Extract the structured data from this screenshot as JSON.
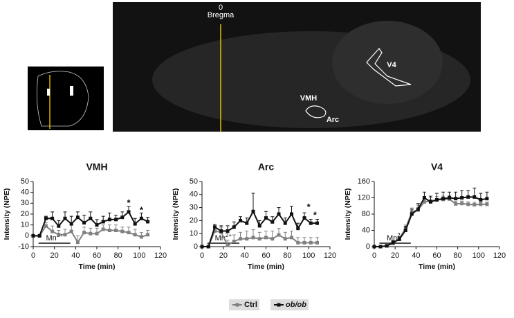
{
  "image_labels": {
    "bregma_position": "0",
    "bregma": "Bregma",
    "regions": [
      "VMH",
      "Arc",
      "V4"
    ]
  },
  "chart_data": [
    {
      "type": "line",
      "title": "VMH",
      "x_label": "Time (min)",
      "y_label": "Intensity (NPE)",
      "xlim": [
        0,
        120
      ],
      "xticks": [
        0,
        20,
        40,
        60,
        80,
        100,
        120
      ],
      "ylim": [
        -10,
        50
      ],
      "yticks": [
        -10,
        0,
        10,
        20,
        30,
        40,
        50
      ],
      "x": [
        0,
        6,
        12,
        18,
        24,
        30,
        36,
        42,
        48,
        54,
        60,
        66,
        72,
        78,
        84,
        90,
        96,
        102,
        108
      ],
      "series": [
        {
          "name": "Ctrl",
          "color": "#808080",
          "values": [
            0,
            0,
            9,
            4,
            1,
            1,
            4,
            -6,
            3,
            2,
            2,
            6,
            5,
            5,
            4,
            3,
            1,
            -1,
            1
          ],
          "errors": [
            1,
            1,
            3,
            5,
            4,
            5,
            6,
            6,
            5,
            5,
            5,
            4,
            5,
            5,
            4,
            5,
            5,
            4,
            4
          ]
        },
        {
          "name": "ob/ob",
          "color": "#111111",
          "values": [
            0,
            0,
            16,
            16,
            9,
            16,
            11,
            17,
            12,
            16,
            10,
            13,
            15,
            15,
            17,
            22,
            11,
            16,
            13
          ],
          "errors": [
            1,
            1,
            2,
            6,
            5,
            6,
            7,
            5,
            7,
            6,
            5,
            5,
            6,
            4,
            5,
            5,
            5,
            5,
            4
          ]
        }
      ],
      "annotations": [
        {
          "text": "*",
          "x": 90,
          "y": 30
        },
        {
          "text": "*",
          "x": 102,
          "y": 23
        }
      ],
      "stimulus": {
        "text": "Mn",
        "sup": "2+",
        "x": [
          5,
          35
        ]
      }
    },
    {
      "type": "line",
      "title": "Arc",
      "x_label": "Time (min)",
      "y_label": "Intensity (NPE)",
      "xlim": [
        0,
        120
      ],
      "xticks": [
        0,
        20,
        40,
        60,
        80,
        100,
        120
      ],
      "ylim": [
        0,
        50
      ],
      "yticks": [
        0,
        10,
        20,
        30,
        40,
        50
      ],
      "x": [
        0,
        6,
        12,
        18,
        24,
        30,
        36,
        42,
        48,
        54,
        60,
        66,
        72,
        78,
        84,
        90,
        96,
        102,
        108
      ],
      "series": [
        {
          "name": "Ctrl",
          "color": "#808080",
          "values": [
            0,
            0,
            12,
            11,
            1,
            4,
            6,
            6,
            7,
            6,
            7,
            6,
            9,
            6,
            7,
            3,
            3,
            3,
            3
          ],
          "errors": [
            1,
            1,
            3,
            4,
            4,
            5,
            5,
            6,
            6,
            5,
            5,
            6,
            5,
            5,
            5,
            4,
            4,
            4,
            4
          ]
        },
        {
          "name": "ob/ob",
          "color": "#111111",
          "values": [
            0,
            0,
            15,
            12,
            12,
            15,
            20,
            18,
            27,
            16,
            22,
            19,
            25,
            18,
            25,
            14,
            22,
            18,
            18
          ],
          "errors": [
            1,
            1,
            2,
            4,
            4,
            4,
            3,
            4,
            14,
            4,
            5,
            4,
            5,
            4,
            6,
            4,
            4,
            3,
            3
          ]
        }
      ],
      "annotations": [
        {
          "text": "*",
          "x": 100,
          "y": 30
        },
        {
          "text": "*",
          "x": 106,
          "y": 24
        }
      ],
      "stimulus": {
        "text": "Mn",
        "sup": "2+",
        "x": [
          5,
          35
        ]
      }
    },
    {
      "type": "line",
      "title": "V4",
      "x_label": "Time (min)",
      "y_label": "Intensity (NPE)",
      "xlim": [
        0,
        120
      ],
      "xticks": [
        0,
        20,
        40,
        60,
        80,
        100,
        120
      ],
      "ylim": [
        0,
        160
      ],
      "yticks": [
        0,
        40,
        80,
        120,
        160
      ],
      "x": [
        0,
        6,
        12,
        18,
        24,
        30,
        36,
        42,
        48,
        54,
        60,
        66,
        72,
        78,
        84,
        90,
        96,
        102,
        108
      ],
      "series": [
        {
          "name": "Ctrl",
          "color": "#808080",
          "values": [
            0,
            0,
            2,
            8,
            20,
            45,
            85,
            90,
            110,
            112,
            115,
            116,
            117,
            105,
            106,
            104,
            103,
            104,
            104
          ],
          "errors": [
            1,
            1,
            2,
            4,
            5,
            8,
            10,
            12,
            10,
            8,
            8,
            8,
            8,
            6,
            6,
            6,
            6,
            5,
            5
          ]
        },
        {
          "name": "ob/ob",
          "color": "#111111",
          "values": [
            0,
            0,
            2,
            10,
            18,
            40,
            80,
            92,
            120,
            110,
            115,
            118,
            120,
            118,
            120,
            122,
            122,
            115,
            118
          ],
          "errors": [
            1,
            1,
            3,
            5,
            6,
            10,
            12,
            14,
            14,
            14,
            16,
            16,
            14,
            16,
            18,
            16,
            22,
            16,
            16
          ]
        }
      ],
      "annotations": [],
      "stimulus": {
        "text": "Mn",
        "sup": "2+",
        "x": [
          5,
          35
        ]
      }
    }
  ],
  "legend": {
    "items": [
      "Ctrl",
      "ob/ob"
    ]
  }
}
